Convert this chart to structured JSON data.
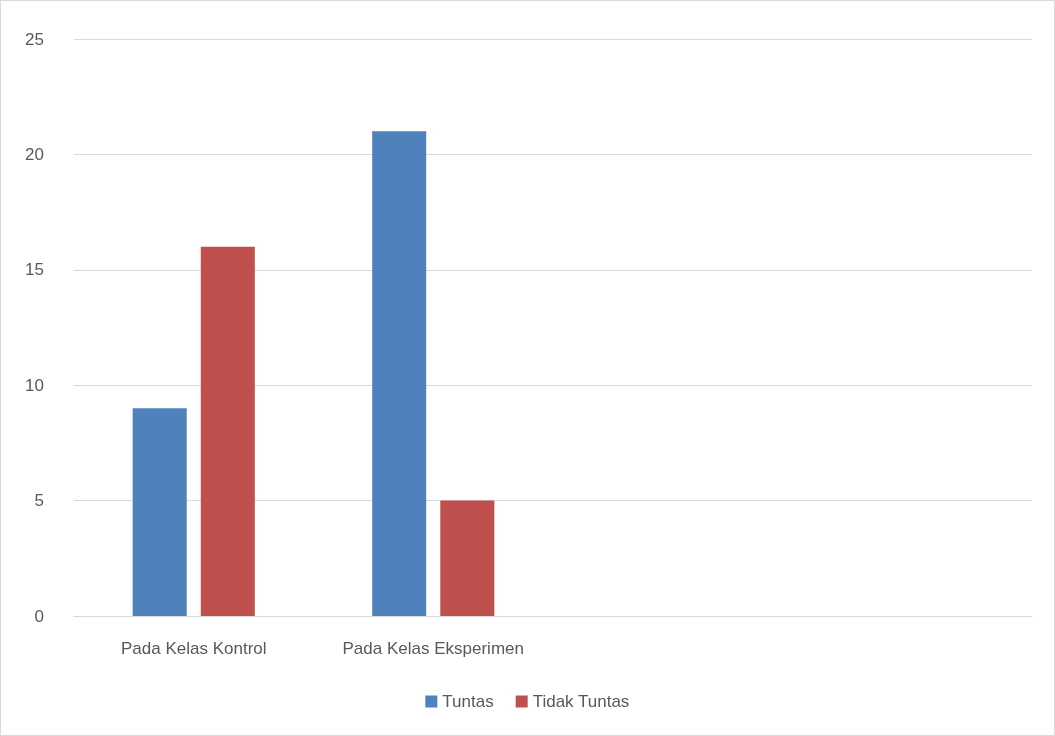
{
  "chart_data": {
    "type": "bar",
    "categories": [
      "Pada Kelas Kontrol",
      "Pada Kelas Eksperimen",
      null,
      null
    ],
    "series": [
      {
        "name": "Tuntas",
        "color": "#4f81bd",
        "values": [
          9,
          21,
          null,
          null
        ]
      },
      {
        "name": "Tidak Tuntas",
        "color": "#c0504d",
        "values": [
          16,
          5,
          null,
          null
        ]
      }
    ],
    "ylim": [
      0,
      25
    ],
    "yticks": [
      0,
      5,
      10,
      15,
      20,
      25
    ],
    "grid": "y",
    "legend": "bottom"
  }
}
